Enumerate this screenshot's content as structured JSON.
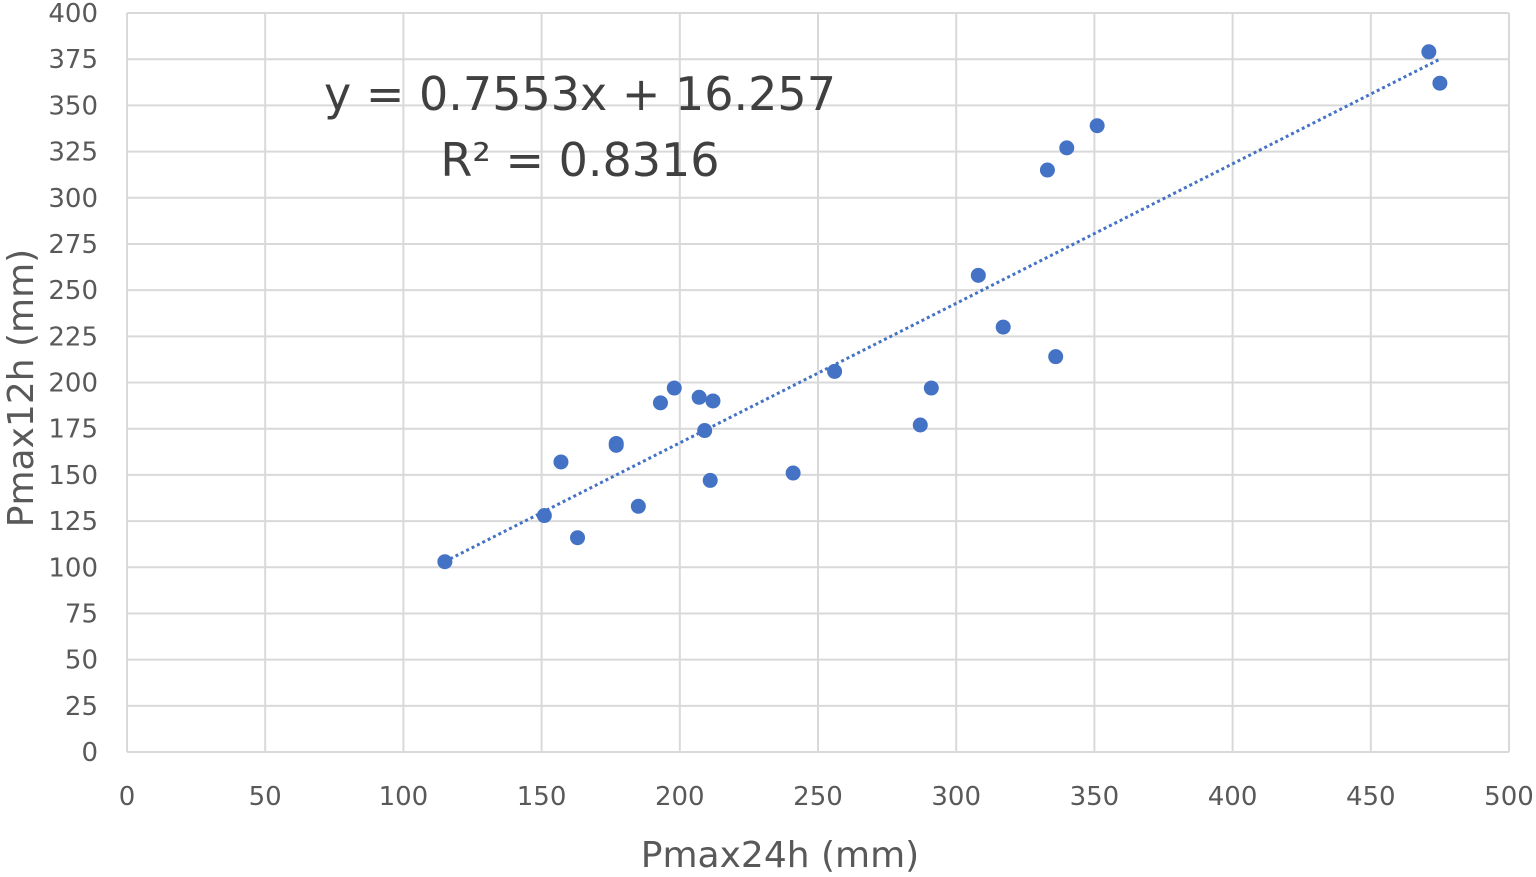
{
  "chart_data": {
    "type": "scatter",
    "xlabel": "Pmax24h (mm)",
    "ylabel": "Pmax12h (mm)",
    "xlim": [
      0,
      500
    ],
    "ylim": [
      0,
      400
    ],
    "x_ticks": [
      "0",
      "50",
      "100",
      "150",
      "200",
      "250",
      "300",
      "350",
      "400",
      "450",
      "500"
    ],
    "y_ticks": [
      "0",
      "25",
      "50",
      "75",
      "100",
      "125",
      "150",
      "175",
      "200",
      "225",
      "250",
      "275",
      "300",
      "325",
      "350",
      "375",
      "400"
    ],
    "grid": true,
    "legend": "none",
    "marker_color": "#4472C4",
    "trendline": {
      "type": "linear",
      "style": "dotted",
      "color": "#4472C4",
      "slope": 0.7553,
      "intercept": 16.257,
      "x_range": [
        115,
        475
      ],
      "equation_label": "y = 0.7553x + 16.257",
      "r2_label": "R² = 0.8316"
    },
    "points": [
      {
        "x": 115,
        "y": 103
      },
      {
        "x": 151,
        "y": 128
      },
      {
        "x": 157,
        "y": 157
      },
      {
        "x": 163,
        "y": 116
      },
      {
        "x": 177,
        "y": 167
      },
      {
        "x": 177,
        "y": 166
      },
      {
        "x": 185,
        "y": 133
      },
      {
        "x": 193,
        "y": 189
      },
      {
        "x": 198,
        "y": 197
      },
      {
        "x": 207,
        "y": 192
      },
      {
        "x": 209,
        "y": 174
      },
      {
        "x": 211,
        "y": 147
      },
      {
        "x": 212,
        "y": 190
      },
      {
        "x": 241,
        "y": 151
      },
      {
        "x": 256,
        "y": 206
      },
      {
        "x": 287,
        "y": 177
      },
      {
        "x": 291,
        "y": 197
      },
      {
        "x": 308,
        "y": 258
      },
      {
        "x": 317,
        "y": 230
      },
      {
        "x": 333,
        "y": 315
      },
      {
        "x": 336,
        "y": 214
      },
      {
        "x": 340,
        "y": 327
      },
      {
        "x": 351,
        "y": 339
      },
      {
        "x": 471,
        "y": 379
      },
      {
        "x": 475,
        "y": 362
      }
    ]
  }
}
